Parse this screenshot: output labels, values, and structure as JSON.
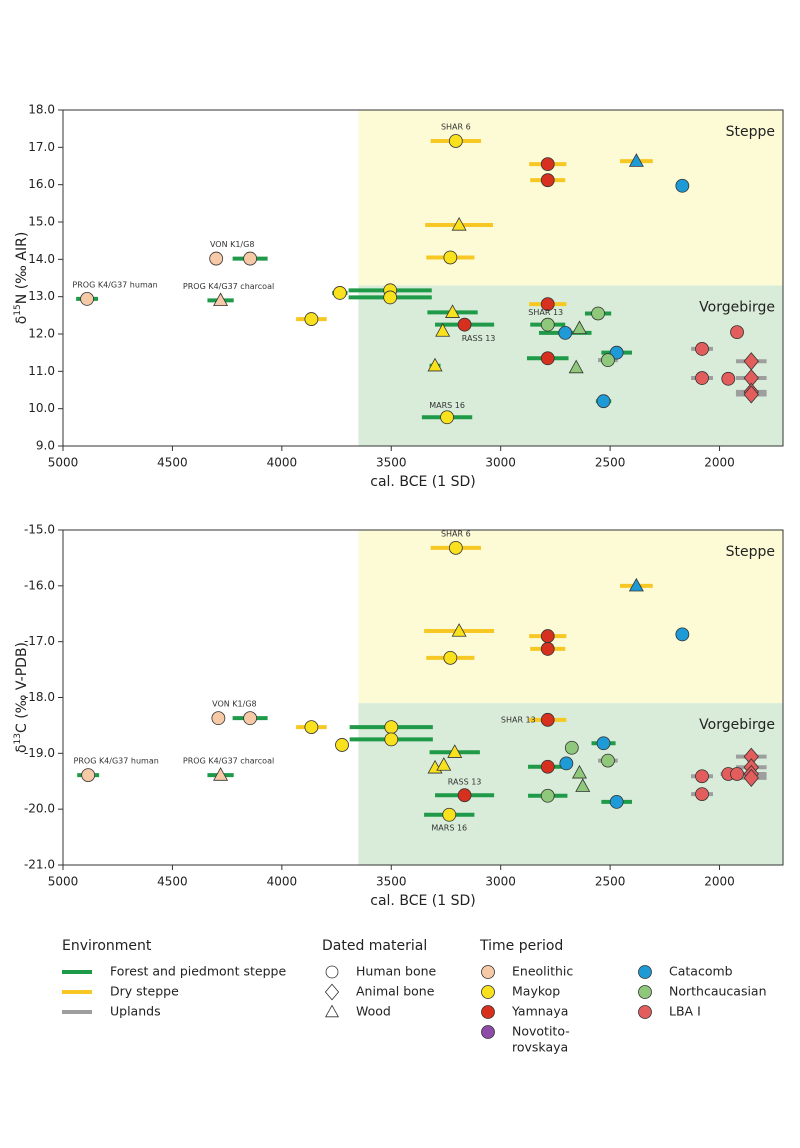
{
  "chart_data": [
    {
      "type": "scatter",
      "xlabel": "cal. BCE (1 SD)",
      "ylabel": [
        "δ",
        "15",
        "N (‰ AIR)"
      ],
      "xlim": [
        5000,
        1710
      ],
      "xticks": [
        5000,
        4500,
        4000,
        3500,
        3000,
        2500,
        2000
      ],
      "ylim": [
        9,
        18
      ],
      "yticks": [
        {
          "value": 9,
          "label": "9.0"
        },
        {
          "value": 10,
          "label": "10.0"
        },
        {
          "value": 11,
          "label": "11.0"
        },
        {
          "value": 12,
          "label": "12.0"
        },
        {
          "value": 13,
          "label": "13.0"
        },
        {
          "value": 14,
          "label": "14.0"
        },
        {
          "value": 15,
          "label": "15.0"
        },
        {
          "value": 16,
          "label": "16.0"
        },
        {
          "value": 17,
          "label": "17.0"
        },
        {
          "value": 18,
          "label": "18.0"
        }
      ],
      "regions": [
        {
          "name": "Steppe",
          "color": "#fdfbd6",
          "x0": 3650,
          "y0": 13.3,
          "y1": 18
        },
        {
          "name": "Vorgebirge",
          "color": "#d9ecd9",
          "x0": 3650,
          "y0": 9,
          "y1": 13.3
        }
      ],
      "points": [
        {
          "x": 4890,
          "y": 12.94,
          "xerr": 50,
          "period": "Eneolithic",
          "material": "Human bone",
          "environment": "Forest and piedmont steppe",
          "label": "PROG K4/G37 human"
        },
        {
          "x": 4280,
          "y": 12.9,
          "xerr": 60,
          "period": "Eneolithic",
          "material": "Wood",
          "environment": "Forest and piedmont steppe",
          "label": "PROG K4/G37 charcoal"
        },
        {
          "x": 4300,
          "y": 14.02,
          "period": "Eneolithic",
          "material": "Human bone",
          "label": "VON K1/G8"
        },
        {
          "x": 4145,
          "y": 14.02,
          "xerr": 80,
          "period": "Eneolithic",
          "material": "Human bone",
          "environment": "Forest and piedmont steppe"
        },
        {
          "x": 3865,
          "y": 12.4,
          "xerr": 70,
          "period": "Maykop",
          "material": "Human bone",
          "environment": "Dry steppe"
        },
        {
          "x": 3735,
          "y": 13.1,
          "xerr": 35,
          "period": "Maykop",
          "material": "Human bone",
          "environment": "Forest and piedmont steppe"
        },
        {
          "x": 3505,
          "y": 13.17,
          "xerr": 190,
          "period": "Maykop",
          "material": "Human bone",
          "environment": "Forest and piedmont steppe"
        },
        {
          "x": 3505,
          "y": 12.98,
          "xerr": 190,
          "period": "Maykop",
          "material": "Human bone",
          "environment": "Forest and piedmont steppe"
        },
        {
          "x": 3205,
          "y": 17.17,
          "xerr": 115,
          "period": "Maykop",
          "material": "Human bone",
          "environment": "Dry steppe",
          "label": "SHAR 6"
        },
        {
          "x": 3190,
          "y": 14.92,
          "xerr": 155,
          "period": "Maykop",
          "material": "Wood",
          "environment": "Dry steppe"
        },
        {
          "x": 3230,
          "y": 14.05,
          "xerr": 110,
          "period": "Maykop",
          "material": "Human bone",
          "environment": "Dry steppe"
        },
        {
          "x": 3220,
          "y": 12.58,
          "xerr": 115,
          "period": "Maykop",
          "material": "Wood",
          "environment": "Forest and piedmont steppe"
        },
        {
          "x": 3265,
          "y": 12.08,
          "period": "Maykop",
          "material": "Wood"
        },
        {
          "x": 3300,
          "y": 11.15,
          "xerr": 25,
          "period": "Maykop",
          "material": "Wood",
          "environment": "Forest and piedmont steppe"
        },
        {
          "x": 3165,
          "y": 12.25,
          "xerr": 135,
          "period": "Yamnaya",
          "material": "Human bone",
          "environment": "Forest and piedmont steppe",
          "label": "RASS 13"
        },
        {
          "x": 3245,
          "y": 9.77,
          "xerr": 115,
          "period": "Maykop",
          "material": "Human bone",
          "environment": "Forest and piedmont steppe",
          "label": "MARS 16"
        },
        {
          "x": 2785,
          "y": 16.55,
          "xerr": 85,
          "period": "Yamnaya",
          "material": "Human bone",
          "environment": "Dry steppe"
        },
        {
          "x": 2785,
          "y": 16.12,
          "xerr": 80,
          "period": "Yamnaya",
          "material": "Human bone",
          "environment": "Dry steppe"
        },
        {
          "x": 2785,
          "y": 12.8,
          "xerr": 85,
          "period": "Yamnaya",
          "material": "Human bone",
          "environment": "Dry steppe"
        },
        {
          "x": 2785,
          "y": 11.35,
          "xerr": 95,
          "period": "Yamnaya",
          "material": "Human bone",
          "environment": "Forest and piedmont steppe"
        },
        {
          "x": 2380,
          "y": 16.63,
          "xerr": 75,
          "period": "Catacomb",
          "material": "Wood",
          "environment": "Dry steppe"
        },
        {
          "x": 2170,
          "y": 15.97,
          "period": "Catacomb",
          "material": "Human bone"
        },
        {
          "x": 2785,
          "y": 12.25,
          "xerr": 80,
          "period": "Northcaucasian",
          "material": "Human bone",
          "environment": "Forest and piedmont steppe",
          "label": "SHAR 13"
        },
        {
          "x": 2705,
          "y": 12.03,
          "xerr": 120,
          "period": "Catacomb",
          "material": "Human bone",
          "environment": "Forest and piedmont steppe"
        },
        {
          "x": 2640,
          "y": 12.15,
          "period": "Northcaucasian",
          "material": "Wood"
        },
        {
          "x": 2555,
          "y": 12.55,
          "xerr": 60,
          "period": "Northcaucasian",
          "material": "Human bone",
          "environment": "Forest and piedmont steppe"
        },
        {
          "x": 2655,
          "y": 11.1,
          "period": "Northcaucasian",
          "material": "Wood"
        },
        {
          "x": 2470,
          "y": 11.5,
          "xerr": 70,
          "period": "Catacomb",
          "material": "Human bone",
          "environment": "Forest and piedmont steppe"
        },
        {
          "x": 2510,
          "y": 11.3,
          "xerr": 45,
          "period": "Northcaucasian",
          "material": "Human bone",
          "environment": "Uplands"
        },
        {
          "x": 2530,
          "y": 10.2,
          "xerr": 35,
          "period": "Catacomb",
          "material": "Human bone",
          "environment": "Forest and piedmont steppe"
        },
        {
          "x": 2080,
          "y": 11.6,
          "xerr": 50,
          "period": "LBA I",
          "material": "Human bone",
          "environment": "Uplands"
        },
        {
          "x": 1920,
          "y": 12.05,
          "period": "LBA I",
          "material": "Human bone"
        },
        {
          "x": 2080,
          "y": 10.82,
          "xerr": 50,
          "period": "LBA I",
          "material": "Human bone",
          "environment": "Uplands"
        },
        {
          "x": 1960,
          "y": 10.8,
          "period": "LBA I",
          "material": "Human bone"
        },
        {
          "x": 1855,
          "y": 11.27,
          "xerr": 70,
          "period": "LBA I",
          "material": "Animal bone",
          "environment": "Uplands"
        },
        {
          "x": 1855,
          "y": 10.82,
          "xerr": 70,
          "period": "LBA I",
          "material": "Animal bone",
          "environment": "Uplands"
        },
        {
          "x": 1855,
          "y": 10.45,
          "xerr": 70,
          "period": "LBA I",
          "material": "Animal bone",
          "environment": "Uplands"
        },
        {
          "x": 1855,
          "y": 10.38,
          "xerr": 70,
          "period": "LBA I",
          "material": "Animal bone",
          "environment": "Uplands"
        }
      ]
    },
    {
      "type": "scatter",
      "xlabel": "cal. BCE (1 SD)",
      "ylabel": [
        "δ",
        "13",
        "C (‰ V-PDB)"
      ],
      "xlim": [
        5000,
        1710
      ],
      "xticks": [
        5000,
        4500,
        4000,
        3500,
        3000,
        2500,
        2000
      ],
      "ylim": [
        -21,
        -15
      ],
      "yticks": [
        {
          "value": -21,
          "label": "-21.0"
        },
        {
          "value": -20,
          "label": "-20.0"
        },
        {
          "value": -19,
          "label": "-19.0"
        },
        {
          "value": -18,
          "label": "-18.0"
        },
        {
          "value": -17,
          "label": "-17.0"
        },
        {
          "value": -16,
          "label": "-16.0"
        },
        {
          "value": -15,
          "label": "-15.0"
        }
      ],
      "regions": [
        {
          "name": "Steppe",
          "color": "#fdfbd6",
          "x0": 3650,
          "y0": -18.1,
          "y1": -15
        },
        {
          "name": "Vorgebirge",
          "color": "#d9ecd9",
          "x0": 3650,
          "y0": -21,
          "y1": -18.1
        }
      ],
      "points": [
        {
          "x": 4885,
          "y": -19.39,
          "xerr": 50,
          "period": "Eneolithic",
          "material": "Human bone",
          "environment": "Forest and piedmont steppe",
          "label": "PROG K4/G37 human"
        },
        {
          "x": 4280,
          "y": -19.39,
          "xerr": 60,
          "period": "Eneolithic",
          "material": "Wood",
          "environment": "Forest and piedmont steppe",
          "label": "PROG K4/G37 charcoal"
        },
        {
          "x": 4290,
          "y": -18.37,
          "period": "Eneolithic",
          "material": "Human bone",
          "label": "VON K1/G8"
        },
        {
          "x": 4145,
          "y": -18.37,
          "xerr": 80,
          "period": "Eneolithic",
          "material": "Human bone",
          "environment": "Forest and piedmont steppe"
        },
        {
          "x": 3865,
          "y": -18.53,
          "xerr": 70,
          "period": "Maykop",
          "material": "Human bone",
          "environment": "Dry steppe"
        },
        {
          "x": 3725,
          "y": -18.85,
          "xerr": 30,
          "period": "Maykop",
          "material": "Human bone",
          "environment": "Forest and piedmont steppe"
        },
        {
          "x": 3500,
          "y": -18.53,
          "xerr": 190,
          "period": "Maykop",
          "material": "Human bone",
          "environment": "Forest and piedmont steppe"
        },
        {
          "x": 3500,
          "y": -18.75,
          "xerr": 190,
          "period": "Maykop",
          "material": "Human bone",
          "environment": "Forest and piedmont steppe"
        },
        {
          "x": 3205,
          "y": -15.32,
          "xerr": 115,
          "period": "Maykop",
          "material": "Human bone",
          "environment": "Dry steppe",
          "label": "SHAR 6"
        },
        {
          "x": 3190,
          "y": -16.81,
          "xerr": 160,
          "period": "Maykop",
          "material": "Wood",
          "environment": "Dry steppe"
        },
        {
          "x": 3230,
          "y": -17.29,
          "xerr": 110,
          "period": "Maykop",
          "material": "Human bone",
          "environment": "Dry steppe"
        },
        {
          "x": 3210,
          "y": -18.98,
          "xerr": 115,
          "period": "Maykop",
          "material": "Wood",
          "environment": "Forest and piedmont steppe"
        },
        {
          "x": 3300,
          "y": -19.26,
          "period": "Maykop",
          "material": "Wood"
        },
        {
          "x": 3260,
          "y": -19.21,
          "period": "Maykop",
          "material": "Wood"
        },
        {
          "x": 3165,
          "y": -19.75,
          "xerr": 135,
          "period": "Yamnaya",
          "material": "Human bone",
          "environment": "Forest and piedmont steppe",
          "label": "RASS 13"
        },
        {
          "x": 3235,
          "y": -20.1,
          "xerr": 115,
          "period": "Maykop",
          "material": "Human bone",
          "environment": "Forest and piedmont steppe",
          "label": "MARS 16"
        },
        {
          "x": 2785,
          "y": -16.9,
          "xerr": 85,
          "period": "Yamnaya",
          "material": "Human bone",
          "environment": "Dry steppe"
        },
        {
          "x": 2785,
          "y": -17.13,
          "xerr": 80,
          "period": "Yamnaya",
          "material": "Human bone",
          "environment": "Dry steppe"
        },
        {
          "x": 2785,
          "y": -18.4,
          "xerr": 85,
          "period": "Yamnaya",
          "material": "Human bone",
          "environment": "Dry steppe",
          "label": "SHAR 13"
        },
        {
          "x": 2785,
          "y": -19.24,
          "xerr": 90,
          "period": "Yamnaya",
          "material": "Human bone",
          "environment": "Forest and piedmont steppe"
        },
        {
          "x": 2380,
          "y": -16.0,
          "xerr": 75,
          "period": "Catacomb",
          "material": "Wood",
          "environment": "Dry steppe"
        },
        {
          "x": 2170,
          "y": -16.87,
          "period": "Catacomb",
          "material": "Human bone"
        },
        {
          "x": 2700,
          "y": -19.18,
          "period": "Catacomb",
          "material": "Human bone"
        },
        {
          "x": 2675,
          "y": -18.9,
          "period": "Northcaucasian",
          "material": "Human bone"
        },
        {
          "x": 2530,
          "y": -18.82,
          "xerr": 55,
          "period": "Catacomb",
          "material": "Human bone",
          "environment": "Forest and piedmont steppe"
        },
        {
          "x": 2510,
          "y": -19.13,
          "xerr": 45,
          "period": "Northcaucasian",
          "material": "Human bone",
          "environment": "Uplands"
        },
        {
          "x": 2640,
          "y": -19.35,
          "period": "Northcaucasian",
          "material": "Wood"
        },
        {
          "x": 2625,
          "y": -19.59,
          "period": "Northcaucasian",
          "material": "Wood"
        },
        {
          "x": 2785,
          "y": -19.76,
          "xerr": 90,
          "period": "Northcaucasian",
          "material": "Human bone",
          "environment": "Forest and piedmont steppe"
        },
        {
          "x": 2470,
          "y": -19.87,
          "xerr": 70,
          "period": "Catacomb",
          "material": "Human bone",
          "environment": "Forest and piedmont steppe"
        },
        {
          "x": 2080,
          "y": -19.41,
          "xerr": 50,
          "period": "LBA I",
          "material": "Human bone",
          "environment": "Uplands"
        },
        {
          "x": 2080,
          "y": -19.73,
          "xerr": 50,
          "period": "LBA I",
          "material": "Human bone",
          "environment": "Uplands"
        },
        {
          "x": 1960,
          "y": -19.37,
          "xerr": 35,
          "period": "LBA I",
          "material": "Human bone",
          "environment": "Uplands"
        },
        {
          "x": 1920,
          "y": -19.37,
          "period": "LBA I",
          "material": "Human bone"
        },
        {
          "x": 1855,
          "y": -19.06,
          "xerr": 70,
          "period": "LBA I",
          "material": "Animal bone",
          "environment": "Uplands"
        },
        {
          "x": 1855,
          "y": -19.25,
          "xerr": 70,
          "period": "LBA I",
          "material": "Animal bone",
          "environment": "Uplands"
        },
        {
          "x": 1855,
          "y": -19.37,
          "xerr": 70,
          "period": "LBA I",
          "material": "Animal bone",
          "environment": "Uplands"
        },
        {
          "x": 1855,
          "y": -19.44,
          "xerr": 70,
          "period": "LBA I",
          "material": "Animal bone",
          "environment": "Uplands"
        }
      ]
    }
  ],
  "legend": {
    "environment": {
      "title": "Environment",
      "items": [
        {
          "name": "Forest and piedmont steppe",
          "color": "#1f9a48"
        },
        {
          "name": "Dry steppe",
          "color": "#f7c823"
        },
        {
          "name": "Uplands",
          "color": "#9e9e9e"
        }
      ]
    },
    "material": {
      "title": "Dated material",
      "items": [
        {
          "name": "Human bone",
          "shape": "circle"
        },
        {
          "name": "Animal bone",
          "shape": "diamond"
        },
        {
          "name": "Wood",
          "shape": "triangle"
        }
      ]
    },
    "period": {
      "title": "Time period",
      "items": [
        {
          "name": "Eneolithic",
          "color": "#f6c9a7"
        },
        {
          "name": "Maykop",
          "color": "#f9e11e"
        },
        {
          "name": "Yamnaya",
          "color": "#d7301f"
        },
        {
          "name": [
            "Novotito-",
            "rovskaya"
          ],
          "color": "#8e4ca8"
        },
        {
          "name": "Catacomb",
          "color": "#1e9bd7"
        },
        {
          "name": "Northcaucasian",
          "color": "#8fc87a"
        },
        {
          "name": "LBA I",
          "color": "#e35d5d"
        }
      ]
    }
  }
}
